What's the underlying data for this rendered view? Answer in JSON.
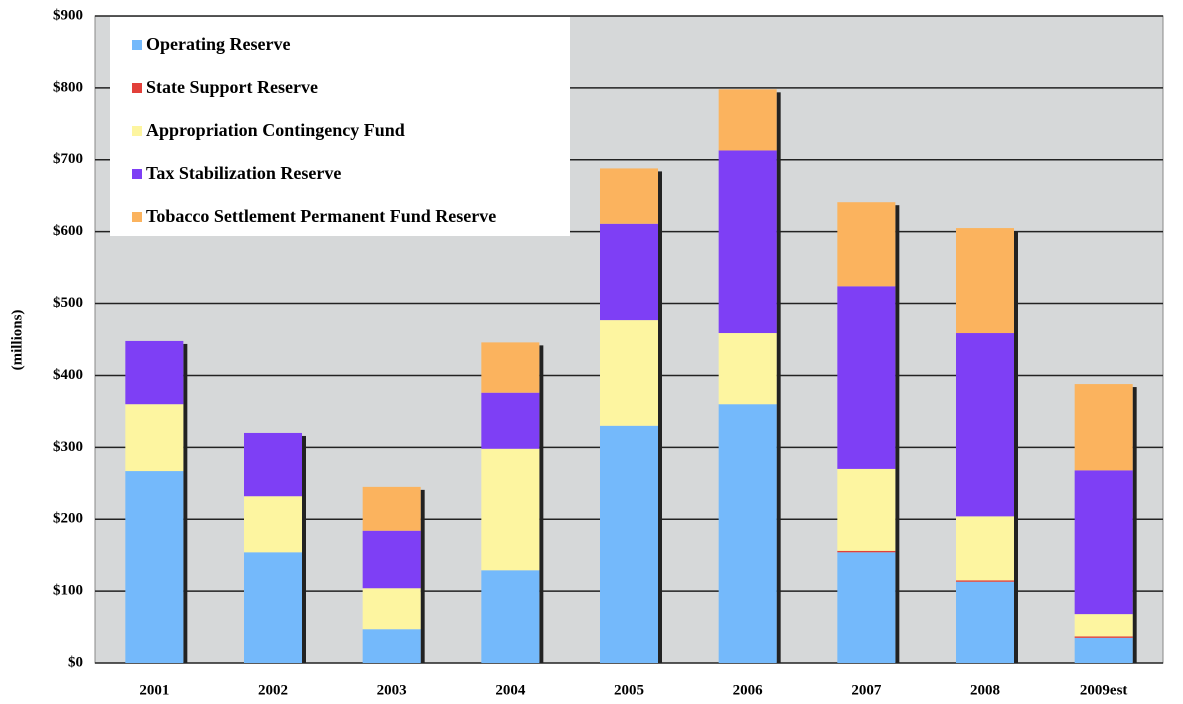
{
  "chart_data": {
    "type": "stacked_bar",
    "ylabel": "(millions)",
    "categories": [
      "2001",
      "2002",
      "2003",
      "2004",
      "2005",
      "2006",
      "2007",
      "2008",
      "2009est"
    ],
    "series": [
      {
        "name": "Operating Reserve",
        "color": "#74b9fb",
        "values": [
          267,
          154,
          47,
          129,
          330,
          360,
          154,
          113,
          35
        ]
      },
      {
        "name": "State Support Reserve",
        "color": "#e2403a",
        "values": [
          0,
          0,
          0,
          0,
          0,
          0,
          2,
          2,
          2
        ]
      },
      {
        "name": "Appropriation Contingency Fund",
        "color": "#fdf5a0",
        "values": [
          93,
          78,
          57,
          169,
          147,
          99,
          114,
          89,
          31
        ]
      },
      {
        "name": "Tax Stabilization Reserve",
        "color": "#7e3ff5",
        "values": [
          88,
          88,
          80,
          78,
          134,
          254,
          254,
          255,
          200
        ]
      },
      {
        "name": "Tobacco Settlement Permanent Fund Reserve",
        "color": "#fbb35e",
        "values": [
          0,
          0,
          61,
          70,
          77,
          85,
          117,
          146,
          120
        ]
      }
    ],
    "ylim": [
      0,
      900
    ],
    "yticks": [
      {
        "value": 0,
        "label": "$0"
      },
      {
        "value": 100,
        "label": "$100"
      },
      {
        "value": 200,
        "label": "$200"
      },
      {
        "value": 300,
        "label": "$300"
      },
      {
        "value": 400,
        "label": "$400"
      },
      {
        "value": 500,
        "label": "$500"
      },
      {
        "value": 600,
        "label": "$600"
      },
      {
        "value": 700,
        "label": "$700"
      },
      {
        "value": 800,
        "label": "$800"
      },
      {
        "value": 900,
        "label": "$900"
      }
    ],
    "grid": true,
    "legend": "upper left",
    "background": "#d6d8d9"
  }
}
